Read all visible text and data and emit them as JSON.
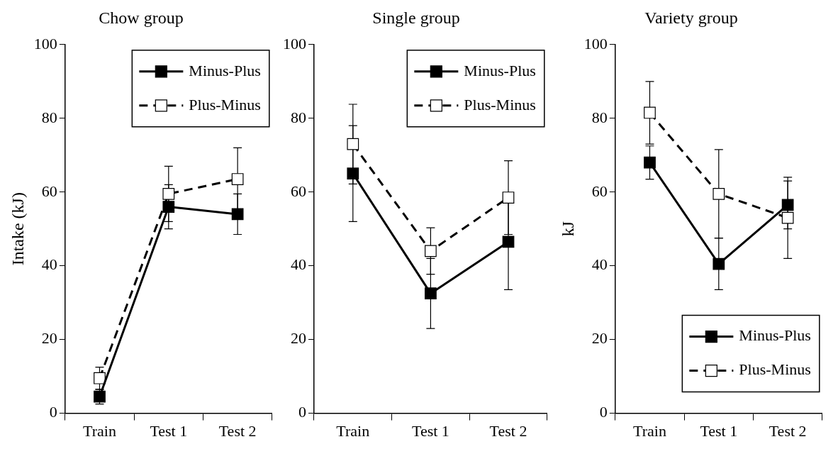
{
  "chart_data": [
    {
      "type": "line",
      "title": "Chow group",
      "ylabel": "Intake (kJ)",
      "categories": [
        "Train",
        "Test 1",
        "Test 2"
      ],
      "ylim": [
        0,
        100
      ],
      "yticks": [
        0,
        20,
        40,
        60,
        80,
        100
      ],
      "legend": "top right",
      "series": [
        {
          "name": "Minus-Plus",
          "color": "#000000",
          "line_style": "solid",
          "marker": "square",
          "values": [
            4.5,
            56,
            54
          ],
          "errors": [
            2,
            6,
            5.5
          ]
        },
        {
          "name": "Plus-Minus",
          "color": "#000000",
          "line_style": "dashed",
          "marker": "square",
          "values": [
            9.5,
            59.5,
            63.5
          ],
          "errors": [
            3,
            7.5,
            8.5
          ]
        }
      ]
    },
    {
      "type": "line",
      "title": "Single group",
      "categories": [
        "Train",
        "Test 1",
        "Test 2"
      ],
      "ylim": [
        0,
        100
      ],
      "yticks": [
        0,
        20,
        40,
        60,
        80,
        100
      ],
      "legend": "top right",
      "series": [
        {
          "name": "Minus-Plus",
          "color": "#000000",
          "line_style": "solid",
          "marker": "square",
          "values": [
            65,
            32.5,
            46.5
          ],
          "errors": [
            13,
            9.5,
            13
          ]
        },
        {
          "name": "Plus-Minus",
          "color": "#000000",
          "line_style": "dashed",
          "marker": "square",
          "values": [
            73,
            44,
            58.5
          ],
          "errors": [
            10.8,
            6.3,
            10
          ]
        }
      ]
    },
    {
      "type": "line",
      "title": "Variety group",
      "ylabel": "kJ",
      "categories": [
        "Train",
        "Test 1",
        "Test 2"
      ],
      "ylim": [
        0,
        100
      ],
      "yticks": [
        0,
        20,
        40,
        60,
        80,
        100
      ],
      "legend": "bottom right",
      "series": [
        {
          "name": "Minus-Plus",
          "color": "#000000",
          "line_style": "solid",
          "marker": "square",
          "values": [
            68,
            40.5,
            56.5
          ],
          "errors": [
            4.5,
            7,
            6.5
          ]
        },
        {
          "name": "Plus-Minus",
          "color": "#000000",
          "line_style": "dashed",
          "marker": "square",
          "values": [
            81.5,
            59.5,
            53
          ],
          "errors": [
            8.5,
            12,
            11
          ]
        }
      ]
    }
  ]
}
